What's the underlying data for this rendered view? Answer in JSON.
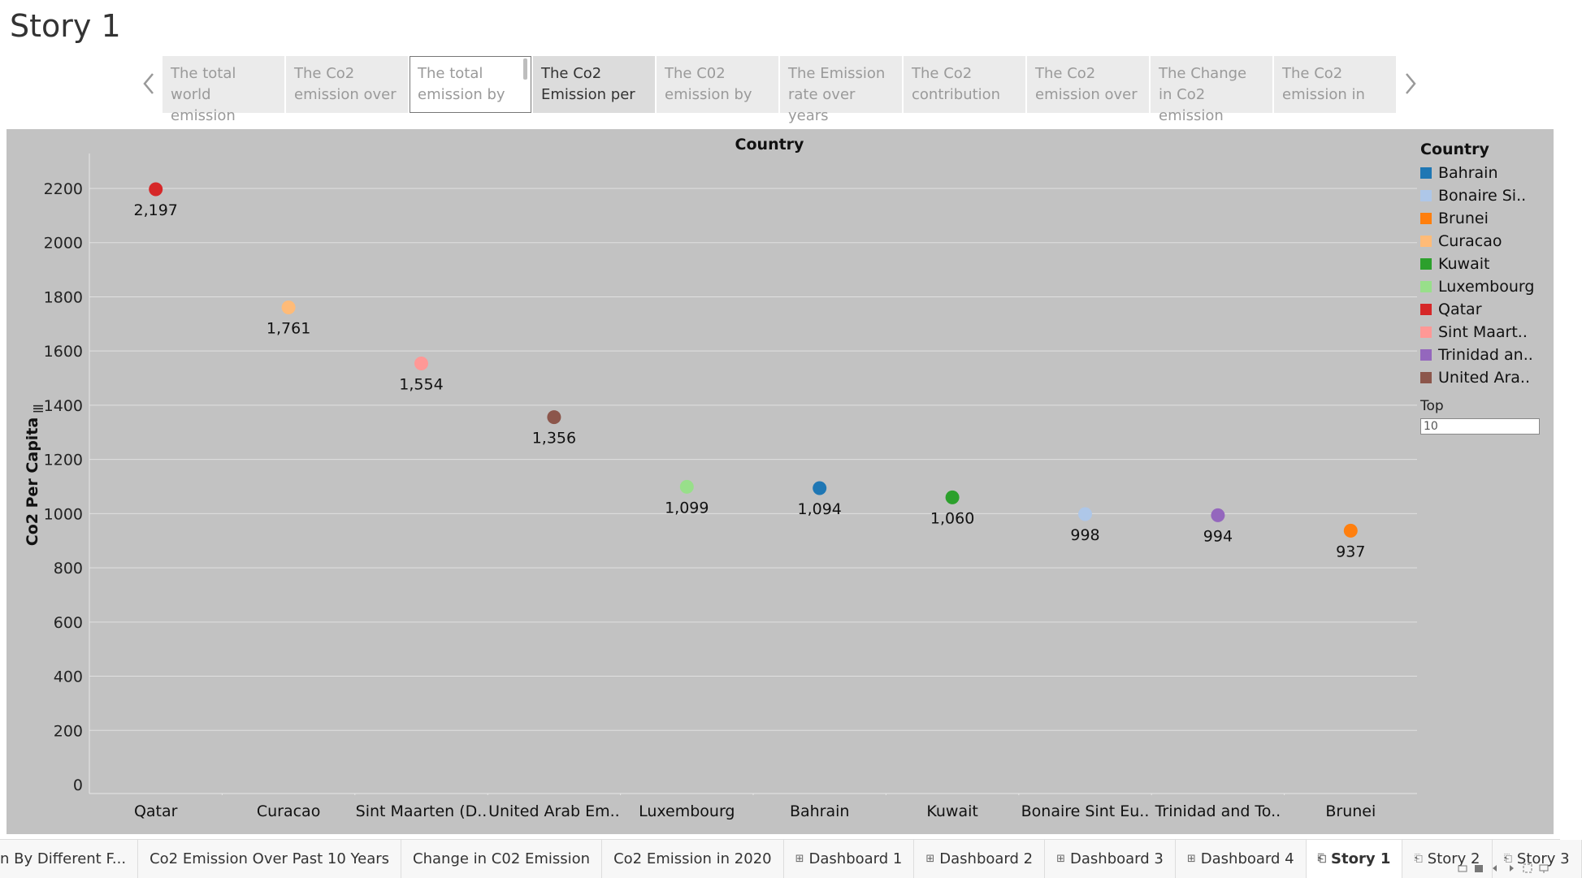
{
  "story": {
    "title": "Story 1",
    "points": [
      {
        "text": "The total world emission",
        "state": "normal"
      },
      {
        "text": "The  Co2 emission over",
        "state": "normal"
      },
      {
        "text": "The total emission by",
        "state": "hovered"
      },
      {
        "text": "The Co2 Emission per",
        "state": "selected"
      },
      {
        "text": "The C02 emission by",
        "state": "normal"
      },
      {
        "text": "The Emission rate over years",
        "state": "normal"
      },
      {
        "text": "The Co2 contribution",
        "state": "normal"
      },
      {
        "text": "The Co2 emission over",
        "state": "normal"
      },
      {
        "text": "The Change in Co2 emission",
        "state": "normal"
      },
      {
        "text": "The Co2 emission in",
        "state": "normal"
      }
    ]
  },
  "legend": {
    "title": "Country",
    "items": [
      {
        "label": "Bahrain",
        "color": "#1f77b4"
      },
      {
        "label": "Bonaire Si..",
        "color": "#aec7e8"
      },
      {
        "label": "Brunei",
        "color": "#ff7f0e"
      },
      {
        "label": "Curacao",
        "color": "#ffbb78"
      },
      {
        "label": "Kuwait",
        "color": "#2ca02c"
      },
      {
        "label": "Luxembourg",
        "color": "#98df8a"
      },
      {
        "label": "Qatar",
        "color": "#d62728"
      },
      {
        "label": "Sint Maart..",
        "color": "#ff9896"
      },
      {
        "label": "Trinidad an..",
        "color": "#9467bd"
      },
      {
        "label": "United Ara..",
        "color": "#8c564b"
      }
    ]
  },
  "top_param": {
    "label": "Top",
    "value": "10"
  },
  "chart_data": {
    "type": "scatter",
    "column_header": "Country",
    "ylabel": "Co2 Per Capita",
    "ylim": [
      0,
      2300
    ],
    "yticks": [
      0,
      200,
      400,
      600,
      800,
      1000,
      1200,
      1400,
      1600,
      1800,
      2000,
      2200
    ],
    "grid": true,
    "legend_position": "right",
    "categories": [
      "Qatar",
      "Curacao",
      "Sint Maarten (D..",
      "United Arab Em..",
      "Luxembourg",
      "Bahrain",
      "Kuwait",
      "Bonaire Sint Eu..",
      "Trinidad and To..",
      "Brunei"
    ],
    "values": [
      2197,
      1761,
      1554,
      1356,
      1099,
      1094,
      1060,
      998,
      994,
      937
    ],
    "labels": [
      "2,197",
      "1,761",
      "1,554",
      "1,356",
      "1,099",
      "1,094",
      "1,060",
      "998",
      "994",
      "937"
    ],
    "colors": [
      "#d62728",
      "#ffbb78",
      "#ff9896",
      "#8c564b",
      "#98df8a",
      "#1f77b4",
      "#2ca02c",
      "#aec7e8",
      "#9467bd",
      "#ff7f0e"
    ]
  },
  "tabs": [
    {
      "label": "n By Different F...",
      "icon": "",
      "active": false
    },
    {
      "label": "Co2 Emission Over Past 10 Years",
      "icon": "",
      "active": false
    },
    {
      "label": "Change in C02 Emission",
      "icon": "",
      "active": false
    },
    {
      "label": "Co2 Emission in 2020",
      "icon": "",
      "active": false
    },
    {
      "label": "Dashboard 1",
      "icon": "dashboard-icon",
      "active": false
    },
    {
      "label": "Dashboard 2",
      "icon": "dashboard-icon",
      "active": false
    },
    {
      "label": "Dashboard 3",
      "icon": "dashboard-icon",
      "active": false
    },
    {
      "label": "Dashboard 4",
      "icon": "dashboard-icon",
      "active": false
    },
    {
      "label": "Story 1",
      "icon": "story-icon",
      "active": true
    },
    {
      "label": "Story 2",
      "icon": "story-icon",
      "active": false
    },
    {
      "label": "Story 3",
      "icon": "story-icon",
      "active": false
    }
  ]
}
